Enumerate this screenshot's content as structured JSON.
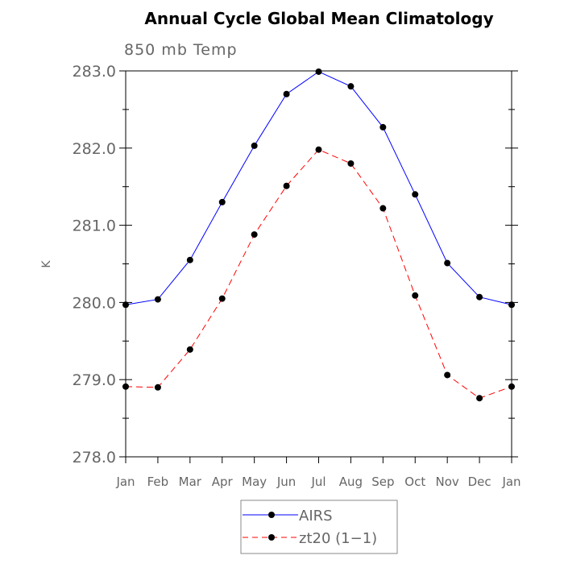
{
  "chart_data": {
    "type": "line",
    "title": "Annual Cycle Global Mean Climatology",
    "subtitle": "850 mb Temp",
    "xlabel": "",
    "ylabel": "K",
    "categories": [
      "Jan",
      "Feb",
      "Mar",
      "Apr",
      "May",
      "Jun",
      "Jul",
      "Aug",
      "Sep",
      "Oct",
      "Nov",
      "Dec",
      "Jan"
    ],
    "ylim": [
      278.0,
      283.0
    ],
    "yticks": [
      "278.0",
      "279.0",
      "280.0",
      "281.0",
      "282.0",
      "283.0"
    ],
    "grid": false,
    "legend_placement": "bottom-center",
    "series": [
      {
        "name": "AIRS",
        "color": "#0000ff",
        "dash": "solid",
        "values": [
          279.97,
          280.04,
          280.55,
          281.3,
          282.03,
          282.7,
          282.99,
          282.8,
          282.27,
          281.4,
          280.51,
          280.07,
          279.97
        ]
      },
      {
        "name": "zt20 (1−1)",
        "color": "#ff0000",
        "dash": "dashed",
        "values": [
          278.91,
          278.9,
          279.39,
          280.05,
          280.88,
          281.51,
          281.98,
          281.8,
          281.22,
          280.09,
          279.06,
          278.76,
          278.91
        ]
      }
    ]
  }
}
